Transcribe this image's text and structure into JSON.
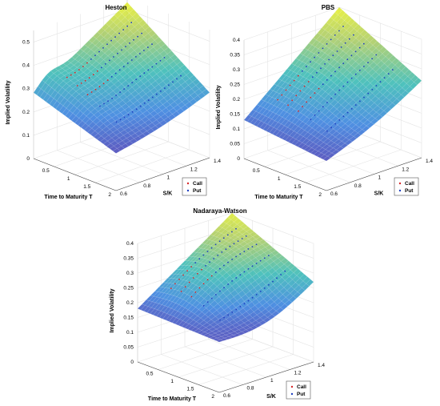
{
  "chart_data": [
    {
      "type": "surface3d",
      "title": "Heston",
      "xlabel": "Time to Maturity T",
      "ylabel": "S/K",
      "zlabel": "Implied Volatility",
      "x_ticks": [
        "0.5",
        "1",
        "1.5",
        "2"
      ],
      "y_ticks": [
        "0.6",
        "0.8",
        "1",
        "1.2",
        "1.4"
      ],
      "z_ticks": [
        "0",
        "0.1",
        "0.2",
        "0.3",
        "0.4",
        "0.5"
      ],
      "xlim": [
        0,
        2
      ],
      "ylim": [
        0.6,
        1.4
      ],
      "zlim": [
        0,
        0.55
      ],
      "surface_corners": {
        "t0_sk06": 0.27,
        "t0_sk14": 0.53,
        "t2_sk06": 0.16,
        "t2_sk14": 0.28
      },
      "legend": [
        "Call",
        "Put"
      ],
      "grid": true
    },
    {
      "type": "surface3d",
      "title": "PBS",
      "xlabel": "Time to Maturity T",
      "ylabel": "S/K",
      "zlabel": "Implied Volatility",
      "x_ticks": [
        "0.5",
        "1",
        "1.5",
        "2"
      ],
      "y_ticks": [
        "0.6",
        "0.8",
        "1",
        "1.2",
        "1.4"
      ],
      "z_ticks": [
        "0",
        "0.05",
        "0.1",
        "0.15",
        "0.2",
        "0.25",
        "0.3",
        "0.35",
        "0.4"
      ],
      "xlim": [
        0,
        2
      ],
      "ylim": [
        0.6,
        1.4
      ],
      "zlim": [
        0,
        0.4
      ],
      "surface_corners": {
        "t0_sk06": 0.13,
        "t0_sk14": 0.4,
        "t2_sk06": 0.1,
        "t2_sk14": 0.26
      },
      "legend": [
        "Call",
        "Put"
      ],
      "grid": true
    },
    {
      "type": "surface3d",
      "title": "Nadaraya-Watson",
      "xlabel": "Time to Maturity T",
      "ylabel": "S/K",
      "zlabel": "Implied Volatility",
      "x_ticks": [
        "0.5",
        "1",
        "1.5",
        "2"
      ],
      "y_ticks": [
        "0.6",
        "0.8",
        "1",
        "1.2",
        "1.4"
      ],
      "z_ticks": [
        "0",
        "0.05",
        "0.1",
        "0.15",
        "0.2",
        "0.25",
        "0.3",
        "0.35",
        "0.4"
      ],
      "xlim": [
        0,
        2
      ],
      "ylim": [
        0.6,
        1.4
      ],
      "zlim": [
        0,
        0.4
      ],
      "surface_corners": {
        "t0_sk06": 0.18,
        "t0_sk14": 0.4,
        "t2_sk06": 0.17,
        "t2_sk14": 0.27
      },
      "legend": [
        "Call",
        "Put"
      ],
      "grid": true
    }
  ],
  "colors": {
    "call": "#d62728",
    "put": "#1f3fbf",
    "surface_low": "#3b3f8f",
    "surface_mid": "#45b5aa",
    "surface_high": "#f2e55c"
  }
}
